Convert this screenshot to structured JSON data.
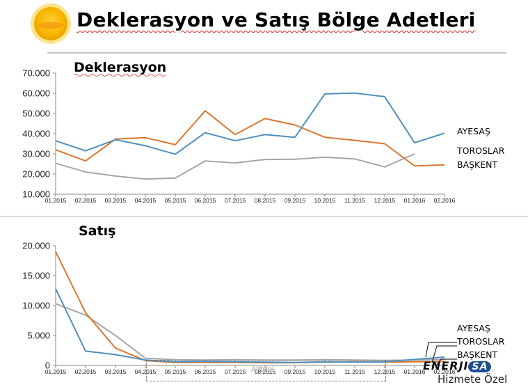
{
  "page": {
    "title": "Deklerasyon ve Satış Bölge Adetleri",
    "footer_box": "Altbilgi",
    "brand": "ENERJI",
    "brand_badge": "SA",
    "tagline": "Hizmete Özel",
    "accent_colors": {
      "ayesas": "#4f8fbf",
      "toroslar": "#d9772e",
      "baskent": "#a6a6a6"
    }
  },
  "chart_data": [
    {
      "type": "line",
      "title": "Deklerasyon",
      "xlabel": "",
      "ylabel": "",
      "x": [
        "01.2015",
        "02.2015",
        "03.2015",
        "04.2015",
        "05.2015",
        "06.2015",
        "07.2015",
        "08.2015",
        "09.2015",
        "10.2015",
        "11.2015",
        "12.2015",
        "01.2016",
        "02.2016"
      ],
      "y_ticks": [
        "10.000",
        "20.000",
        "30.000",
        "40.000",
        "50.000",
        "60.000",
        "70.000"
      ],
      "ylim": [
        10000,
        70000
      ],
      "grid": false,
      "legend": "right",
      "series": [
        {
          "name": "AYESAŞ",
          "color": "#4f8fbf",
          "values": [
            36500,
            31500,
            37000,
            34000,
            29800,
            40500,
            36500,
            39500,
            38200,
            59700,
            60100,
            58300,
            35500,
            40200
          ]
        },
        {
          "name": "TOROSLAR",
          "color": "#d9772e",
          "values": [
            32000,
            26500,
            37300,
            38000,
            34500,
            51300,
            39500,
            47500,
            44300,
            38200,
            36700,
            35000,
            24000,
            24500
          ]
        },
        {
          "name": "BAŞKENT",
          "color": "#a6a6a6",
          "values": [
            25300,
            21000,
            19000,
            17500,
            18000,
            26500,
            25500,
            27200,
            27300,
            28300,
            27500,
            23500,
            30000,
            null
          ]
        }
      ]
    },
    {
      "type": "line",
      "title": "Satış",
      "xlabel": "",
      "ylabel": "",
      "x": [
        "01.2015",
        "02.2015",
        "03.2015",
        "04.2015",
        "05.2015",
        "06.2015",
        "07.2015",
        "08.2015",
        "09.2015",
        "10.2015",
        "11.2015",
        "12.2015",
        "01.2016",
        "02.2016"
      ],
      "y_ticks": [
        "0",
        "5.000",
        "10.000",
        "15.000",
        "20.000"
      ],
      "ylim": [
        0,
        20000
      ],
      "grid": false,
      "legend": "right",
      "series": [
        {
          "name": "AYESAŞ",
          "color": "#4f8fbf",
          "values": [
            12800,
            2400,
            1800,
            900,
            600,
            650,
            600,
            550,
            500,
            600,
            550,
            600,
            1000,
            1400
          ]
        },
        {
          "name": "TOROSLAR",
          "color": "#d9772e",
          "values": [
            19000,
            8800,
            2900,
            800,
            500,
            500,
            500,
            450,
            450,
            550,
            600,
            550,
            600,
            650
          ]
        },
        {
          "name": "BAŞKENT",
          "color": "#a6a6a6",
          "values": [
            10300,
            8400,
            5000,
            1200,
            950,
            900,
            950,
            900,
            900,
            950,
            900,
            850,
            900,
            1000
          ]
        }
      ]
    }
  ]
}
